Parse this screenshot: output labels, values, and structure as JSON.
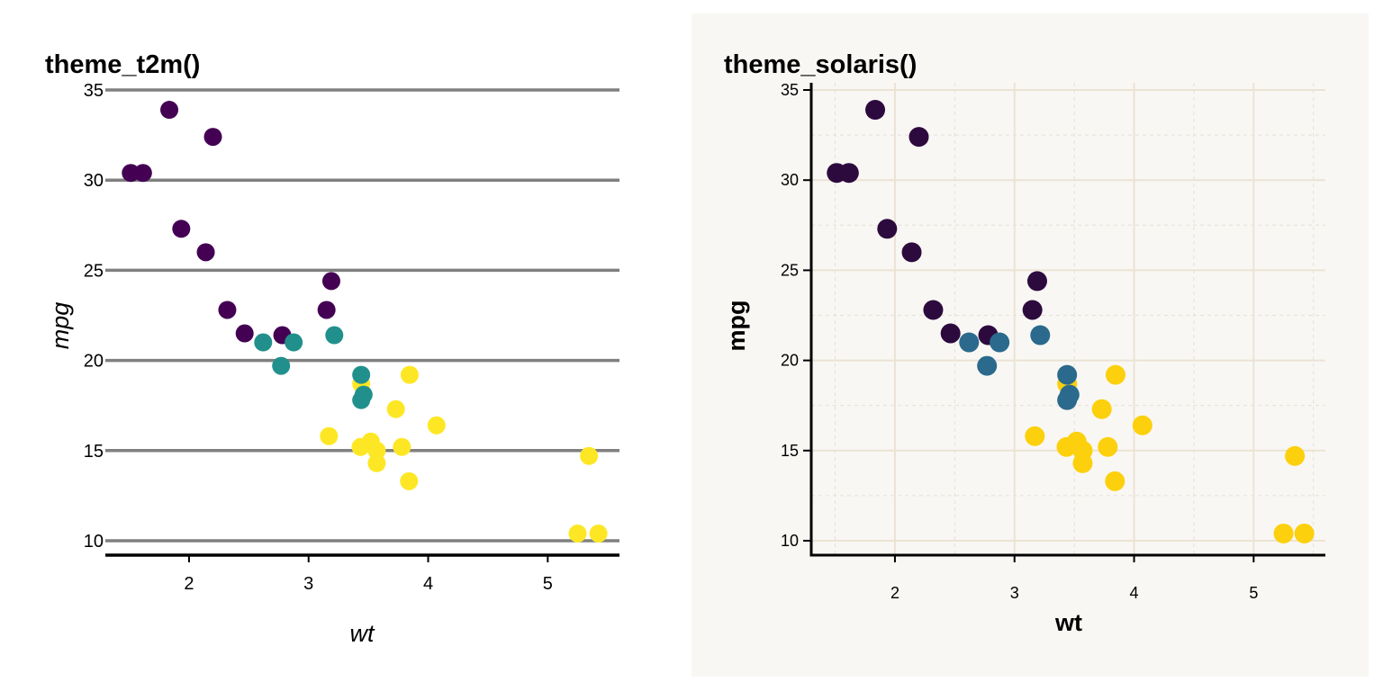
{
  "chart_data": [
    {
      "type": "scatter",
      "title": "theme_t2m()",
      "xlabel": "wt",
      "ylabel": "mpg",
      "xlim": [
        1.3,
        5.6
      ],
      "ylim": [
        9.2,
        35.4
      ],
      "xticks": [
        2,
        3,
        4,
        5
      ],
      "yticks": [
        10,
        15,
        20,
        25,
        30,
        35
      ],
      "grid": "horizontal-major",
      "legend": "none",
      "colors": {
        "group1": "#440154",
        "group2": "#21908c",
        "group3": "#fde725"
      },
      "series": [
        {
          "values": [
            [
              1.835,
              33.9
            ],
            [
              2.2,
              32.4
            ],
            [
              1.513,
              30.4
            ],
            [
              1.615,
              30.4
            ],
            [
              1.935,
              27.3
            ],
            [
              2.14,
              26.0
            ],
            [
              3.19,
              24.4
            ],
            [
              2.32,
              22.8
            ],
            [
              3.15,
              22.8
            ],
            [
              2.465,
              21.5
            ],
            [
              2.78,
              21.4
            ]
          ]
        },
        {
          "values": [
            [
              2.62,
              21.0
            ],
            [
              2.875,
              21.0
            ],
            [
              3.215,
              21.4
            ],
            [
              2.77,
              19.7
            ],
            [
              3.44,
              19.2
            ],
            [
              3.46,
              18.1
            ],
            [
              3.44,
              17.8
            ]
          ]
        },
        {
          "values": [
            [
              3.44,
              18.7
            ],
            [
              3.845,
              19.2
            ],
            [
              3.73,
              17.3
            ],
            [
              4.07,
              16.4
            ],
            [
              3.17,
              15.8
            ],
            [
              3.52,
              15.5
            ],
            [
              3.435,
              15.2
            ],
            [
              3.78,
              15.2
            ],
            [
              3.57,
              15.0
            ],
            [
              3.57,
              14.3
            ],
            [
              3.84,
              13.3
            ],
            [
              5.345,
              14.7
            ],
            [
              5.25,
              10.4
            ],
            [
              5.424,
              10.4
            ]
          ]
        }
      ]
    },
    {
      "type": "scatter",
      "title": "theme_solaris()",
      "xlabel": "wt",
      "ylabel": "mpg",
      "xlim": [
        1.3,
        5.6
      ],
      "ylim": [
        9.2,
        35.4
      ],
      "xticks": [
        2,
        3,
        4,
        5
      ],
      "yticks": [
        10,
        15,
        20,
        25,
        30,
        35
      ],
      "grid": "major-solid-minor-dashed",
      "legend": "none",
      "colors": {
        "group1": "#2d0a3e",
        "group2": "#2b6a8c",
        "group3": "#fcd00c",
        "background": "#f9f7f4",
        "grid": "#ebe3d4"
      },
      "series": [
        {
          "values": [
            [
              1.835,
              33.9
            ],
            [
              2.2,
              32.4
            ],
            [
              1.513,
              30.4
            ],
            [
              1.615,
              30.4
            ],
            [
              1.935,
              27.3
            ],
            [
              2.14,
              26.0
            ],
            [
              3.19,
              24.4
            ],
            [
              2.32,
              22.8
            ],
            [
              3.15,
              22.8
            ],
            [
              2.465,
              21.5
            ],
            [
              2.78,
              21.4
            ]
          ]
        },
        {
          "values": [
            [
              2.62,
              21.0
            ],
            [
              2.875,
              21.0
            ],
            [
              3.215,
              21.4
            ],
            [
              2.77,
              19.7
            ],
            [
              3.44,
              19.2
            ],
            [
              3.46,
              18.1
            ],
            [
              3.44,
              17.8
            ]
          ]
        },
        {
          "values": [
            [
              3.44,
              18.7
            ],
            [
              3.845,
              19.2
            ],
            [
              3.73,
              17.3
            ],
            [
              4.07,
              16.4
            ],
            [
              3.17,
              15.8
            ],
            [
              3.52,
              15.5
            ],
            [
              3.435,
              15.2
            ],
            [
              3.78,
              15.2
            ],
            [
              3.57,
              15.0
            ],
            [
              3.57,
              14.3
            ],
            [
              3.84,
              13.3
            ],
            [
              5.345,
              14.7
            ],
            [
              5.25,
              10.4
            ],
            [
              5.424,
              10.4
            ]
          ]
        }
      ]
    }
  ]
}
